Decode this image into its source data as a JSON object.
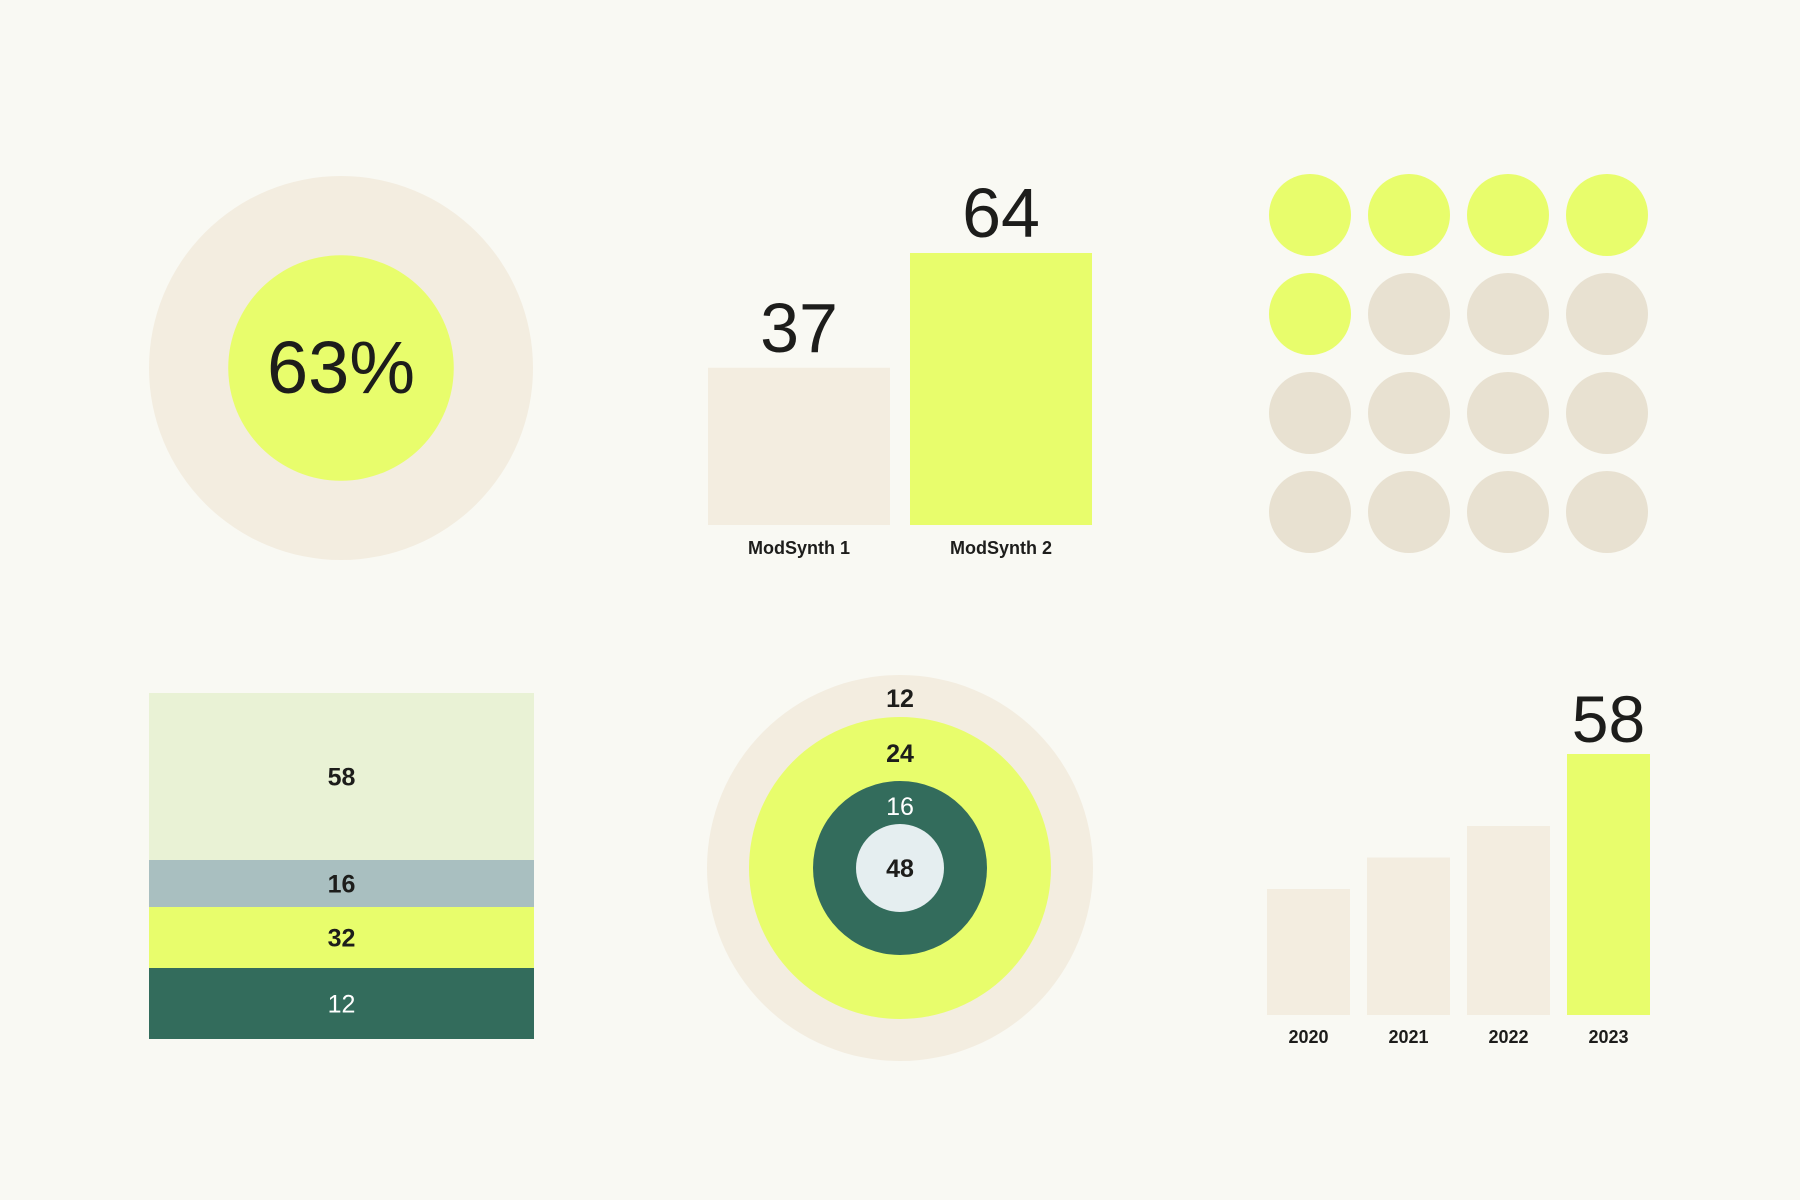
{
  "colors": {
    "background": "#f9f9f3",
    "beige": "#f3ede0",
    "dot_gray": "#e8e1d1",
    "lime": "#e8fd6c",
    "pale_green": "#e9f2d5",
    "slate": "#a9bfc0",
    "dark_green": "#336c5c",
    "ice": "#e5eef0",
    "text_dark": "#1d1d1b",
    "text_light": "#ffffff"
  },
  "chart_data": [
    {
      "type": "pie",
      "subtype": "percentage-ring",
      "value": 63,
      "label": "63%"
    },
    {
      "type": "bar",
      "categories": [
        "ModSynth 1",
        "ModSynth 2"
      ],
      "values": [
        37,
        64
      ],
      "value_labels": [
        "37",
        "64"
      ],
      "highlight_index": 1
    },
    {
      "type": "table",
      "subtype": "dot-matrix",
      "total": 16,
      "filled": 5,
      "columns": 4
    },
    {
      "type": "bar",
      "subtype": "stacked-single",
      "segments": [
        {
          "value": 58,
          "label": "58",
          "color": "#e9f2d5",
          "text_color": "#1d1d1b"
        },
        {
          "value": 16,
          "label": "16",
          "color": "#a9bfc0",
          "text_color": "#1d1d1b"
        },
        {
          "value": 32,
          "label": "32",
          "color": "#e8fd6c",
          "text_color": "#1d1d1b"
        },
        {
          "value": 12,
          "label": "12",
          "color": "#336c5c",
          "text_color": "#ffffff"
        }
      ]
    },
    {
      "type": "pie",
      "subtype": "nested-rings",
      "rings": [
        {
          "value": 12,
          "label": "12",
          "color": "#f3ede0",
          "text_color": "#1d1d1b"
        },
        {
          "value": 24,
          "label": "24",
          "color": "#e8fd6c",
          "text_color": "#1d1d1b"
        },
        {
          "value": 16,
          "label": "16",
          "color": "#336c5c",
          "text_color": "#ffffff"
        },
        {
          "value": 48,
          "label": "48",
          "color": "#e5eef0",
          "text_color": "#1d1d1b"
        }
      ]
    },
    {
      "type": "bar",
      "categories": [
        "2020",
        "2021",
        "2022",
        "2023"
      ],
      "values": [
        28,
        35,
        42,
        58
      ],
      "highlight_index": 3,
      "highlight_label": "58"
    }
  ]
}
